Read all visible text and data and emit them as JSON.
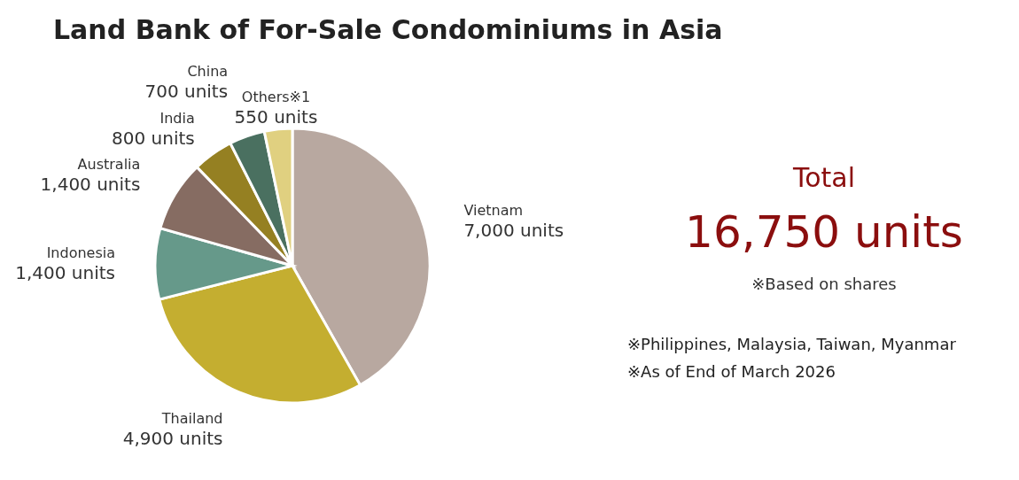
{
  "chart_data": {
    "type": "pie",
    "title": "Land Bank of For-Sale Condominiums in Asia",
    "categories": [
      "Vietnam",
      "Thailand",
      "Indonesia",
      "Australia",
      "India",
      "China",
      "Others※1"
    ],
    "values": [
      7000,
      4900,
      1400,
      1400,
      800,
      700,
      550
    ],
    "value_labels": [
      "7,000 units",
      "4,900 units",
      "1,400 units",
      "1,400 units",
      "800 units",
      "700 units",
      "550 units"
    ],
    "colors": [
      "#b8a8a0",
      "#c4ae30",
      "#66998a",
      "#866c62",
      "#958022",
      "#4a7060",
      "#e0d080"
    ],
    "annotations": [
      "Total",
      "16,750 units",
      "※Based on shares",
      "※Philippines, Malaysia, Taiwan, Myanmar",
      "※As of End of March 2026"
    ]
  }
}
